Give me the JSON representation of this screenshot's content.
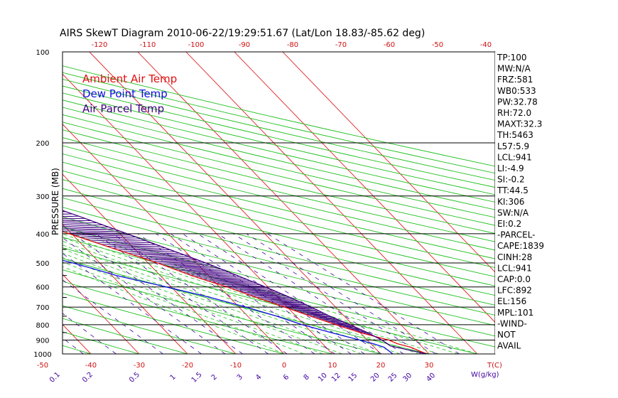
{
  "chart_data": {
    "type": "line",
    "title": "AIRS SkewT Diagram 2010-06-22/19:29:51.67 (Lat/Lon 18.83/-85.62 deg)",
    "ylabel": "PRESSURE (MB)",
    "xlabel": "T(C)",
    "mixing_ratio_label": "W(g/kg)",
    "y_scale": "log",
    "ylim": [
      1000,
      100
    ],
    "xlim_bottom": [
      -50,
      35
    ],
    "pressure_ticks": [
      100,
      200,
      300,
      400,
      500,
      600,
      700,
      800,
      900,
      1000
    ],
    "temp_ticks_bottom": [
      -50,
      -40,
      -30,
      -20,
      -10,
      0,
      10,
      20,
      30
    ],
    "temp_ticks_top": [
      -120,
      -110,
      -100,
      -90,
      -80,
      -70,
      -60,
      -50,
      -40
    ],
    "mixing_ratio_ticks": [
      "0.1",
      "0.2",
      "0.5",
      "1",
      "1.5",
      "2",
      "3",
      "4",
      "6",
      "8",
      "10",
      "12",
      "15",
      "20",
      "25",
      "30",
      "40"
    ],
    "colors": {
      "ambient": "#e01010",
      "dewpoint": "#1010e0",
      "parcel": "#400080",
      "isotherm": "#e02020",
      "dry_adiabat": "#20c020",
      "mixing_ratio": "#4000a0",
      "moist_adiabat": "#20c020"
    },
    "legend": [
      {
        "label": "Ambient Air Temp",
        "color": "#e01010"
      },
      {
        "label": "Dew Point Temp",
        "color": "#1010e0"
      },
      {
        "label": "Air Parcel Temp",
        "color": "#400080"
      }
    ],
    "series": [
      {
        "name": "Ambient Air Temp",
        "p": [
          1000,
          950,
          925,
          900,
          850,
          800,
          750,
          700,
          650,
          600,
          550,
          500,
          450,
          400,
          350,
          300,
          250,
          220,
          200,
          180,
          170,
          160,
          130,
          100
        ],
        "t": [
          29.5,
          27.5,
          25.5,
          24.5,
          20,
          16.5,
          13,
          9.5,
          5.5,
          1.5,
          -3.5,
          -8,
          -14,
          -20.5,
          -28,
          -35.5,
          -46,
          -52,
          -58,
          -63.5,
          -66,
          -68,
          -72,
          -74
        ]
      },
      {
        "name": "Dew Point Temp",
        "p": [
          1000,
          950,
          925,
          900,
          850,
          800,
          750,
          700,
          650,
          600,
          550,
          500,
          450,
          400,
          350,
          300,
          250,
          220,
          200,
          180,
          160,
          130,
          100
        ],
        "t": [
          22.5,
          22,
          20.5,
          18.5,
          14,
          9.5,
          6,
          1.5,
          -4,
          -11,
          -19,
          -25.5,
          -34,
          -43,
          -48,
          -54,
          -61,
          -65,
          -71,
          -75,
          -79,
          -81,
          -84
        ]
      },
      {
        "name": "Air Parcel Temp",
        "p": [
          1000,
          950,
          941,
          900,
          850,
          800,
          750,
          700,
          650,
          600,
          550,
          500,
          450,
          400,
          350,
          300,
          250,
          220,
          200,
          180,
          150,
          130,
          100
        ],
        "t": [
          29.5,
          24.5,
          23.6,
          23,
          21.5,
          19.5,
          17,
          15,
          12.5,
          9.5,
          6,
          2,
          -3,
          -8.5,
          -15,
          -23,
          -33,
          -40,
          -47,
          -54,
          -66,
          -75,
          -90
        ]
      }
    ],
    "stats": [
      "TP:100",
      "MW:N/A",
      "FRZ:581",
      "WB0:533",
      "PW:32.78",
      "RH:72.0",
      "MAXT:32.3",
      "TH:5463",
      "L57:5.9",
      "LCL:941",
      "LI:-4.9",
      "SI:-0.2",
      "TT:44.5",
      "KI:306",
      "SW:N/A",
      "EI:0.2",
      "-PARCEL-",
      "CAPE:1839",
      "CINH:28",
      "LCL:941",
      "CAP:0.0",
      "LFC:892",
      "EL:156",
      "MPL:101",
      "-WIND-",
      "NOT",
      "AVAIL"
    ]
  }
}
